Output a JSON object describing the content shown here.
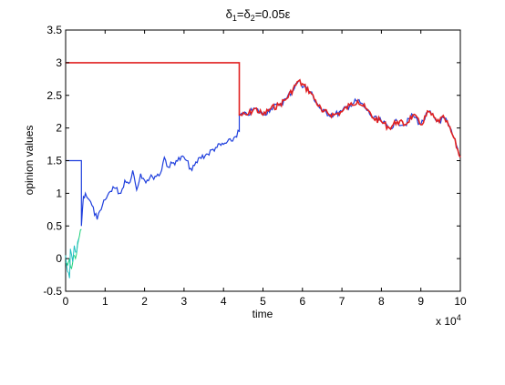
{
  "chart_data": {
    "type": "line",
    "title": {
      "text_delta": "δ",
      "sub1": "1",
      "eq1": "=",
      "sub2": "2",
      "rest": "=0.05ε"
    },
    "xlabel": "time",
    "ylabel": "opinion values",
    "x_exponent_label": {
      "base": "x 10",
      "exp": "4"
    },
    "xlim": [
      0,
      10
    ],
    "ylim": [
      -0.5,
      3.5
    ],
    "x_ticks": [
      "0",
      "1",
      "2",
      "3",
      "4",
      "5",
      "6",
      "7",
      "8",
      "9",
      "10"
    ],
    "y_ticks": [
      "-0.5",
      "0",
      "0.5",
      "1",
      "1.5",
      "2",
      "2.5",
      "3",
      "3.5"
    ],
    "grid": false,
    "colors": {
      "red": "#e02020",
      "blue": "#1f3fdd",
      "green": "#1fd07a",
      "cyan": "#20c0c0"
    },
    "series": [
      {
        "color_key": "red",
        "x": [
          0,
          4.4,
          4.4,
          4.6,
          4.8,
          5.0,
          5.2,
          5.4,
          5.6,
          5.9,
          6.2,
          6.5,
          6.8,
          7.0,
          7.2,
          7.4,
          7.6,
          7.8,
          8.0,
          8.2,
          8.4,
          8.6,
          8.8,
          9.0,
          9.2,
          9.4,
          9.6,
          9.8,
          10.0
        ],
        "y": [
          3.0,
          3.0,
          2.2,
          2.2,
          2.3,
          2.2,
          2.3,
          2.35,
          2.45,
          2.72,
          2.55,
          2.25,
          2.2,
          2.25,
          2.35,
          2.42,
          2.3,
          2.15,
          2.1,
          2.0,
          2.1,
          2.05,
          2.2,
          2.05,
          2.25,
          2.1,
          2.15,
          1.9,
          1.55
        ]
      },
      {
        "color_key": "blue",
        "x": [
          0,
          0.4,
          0.4,
          0.45,
          0.5,
          0.6,
          0.8,
          0.9,
          1.0,
          1.2,
          1.4,
          1.5,
          1.6,
          1.7,
          1.8,
          1.9,
          2.0,
          2.2,
          2.4,
          2.5,
          2.6,
          2.8,
          3.0,
          3.2,
          3.4,
          3.6,
          3.8,
          4.0,
          4.2,
          4.4,
          4.4,
          4.6,
          4.8,
          5.0,
          5.2,
          5.4,
          5.6,
          5.9,
          6.2,
          6.5,
          6.8,
          7.0,
          7.2,
          7.4,
          7.6,
          7.8,
          8.0,
          8.2,
          8.4,
          8.6,
          8.8,
          9.0,
          9.2,
          9.4,
          9.6,
          9.8,
          10.0
        ],
        "y": [
          1.5,
          1.5,
          0.5,
          0.95,
          1.0,
          0.9,
          0.6,
          0.75,
          0.9,
          1.1,
          1.0,
          1.2,
          1.15,
          1.35,
          1.05,
          1.3,
          1.2,
          1.25,
          1.3,
          1.55,
          1.4,
          1.5,
          1.55,
          1.35,
          1.55,
          1.6,
          1.7,
          1.75,
          1.8,
          1.95,
          2.2,
          2.2,
          2.3,
          2.2,
          2.3,
          2.35,
          2.45,
          2.72,
          2.55,
          2.25,
          2.2,
          2.25,
          2.35,
          2.42,
          2.3,
          2.15,
          2.1,
          2.0,
          2.1,
          2.05,
          2.2,
          2.05,
          2.25,
          2.1,
          2.15,
          1.9,
          1.55
        ]
      },
      {
        "color_key": "green",
        "x": [
          0,
          0.05,
          0.1,
          0.15,
          0.2,
          0.25,
          0.3,
          0.35,
          0.4
        ],
        "y": [
          -0.05,
          -0.1,
          0.0,
          -0.15,
          0.05,
          0.0,
          0.2,
          0.35,
          0.45
        ]
      },
      {
        "color_key": "cyan",
        "x": [
          0,
          0.05,
          0.1,
          0.12,
          0.18,
          0.22,
          0.28,
          0.33
        ],
        "y": [
          0.05,
          -0.2,
          -0.3,
          0.15,
          -0.05,
          0.2,
          0.1,
          0.3
        ]
      }
    ]
  }
}
